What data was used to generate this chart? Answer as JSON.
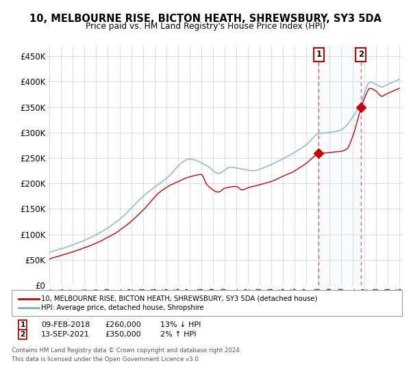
{
  "title": "10, MELBOURNE RISE, BICTON HEATH, SHREWSBURY, SY3 5DA",
  "subtitle": "Price paid vs. HM Land Registry's House Price Index (HPI)",
  "ylabel_ticks": [
    "£0",
    "£50K",
    "£100K",
    "£150K",
    "£200K",
    "£250K",
    "£300K",
    "£350K",
    "£400K",
    "£450K"
  ],
  "ytick_vals": [
    0,
    50000,
    100000,
    150000,
    200000,
    250000,
    300000,
    350000,
    400000,
    450000
  ],
  "ylim": [
    0,
    470000
  ],
  "xlim_start": 1994.8,
  "xlim_end": 2025.3,
  "sale1_x": 2018.1,
  "sale1_y": 260000,
  "sale1_label": "09-FEB-2018",
  "sale1_price": "£260,000",
  "sale1_hpi": "13% ↓ HPI",
  "sale2_x": 2021.7,
  "sale2_y": 350000,
  "sale2_label": "13-SEP-2021",
  "sale2_price": "£350,000",
  "sale2_hpi": "2% ↑ HPI",
  "legend_line1": "10, MELBOURNE RISE, BICTON HEATH, SHREWSBURY, SY3 5DA (detached house)",
  "legend_line2": "HPI: Average price, detached house, Shropshire",
  "footer": "Contains HM Land Registry data © Crown copyright and database right 2024.\nThis data is licensed under the Open Government Licence v3.0.",
  "hpi_color": "#7aaddc",
  "price_color": "#cc0000",
  "background_color": "#ffffff",
  "shade_color": "#ddeeff",
  "grid_color": "#cccccc"
}
